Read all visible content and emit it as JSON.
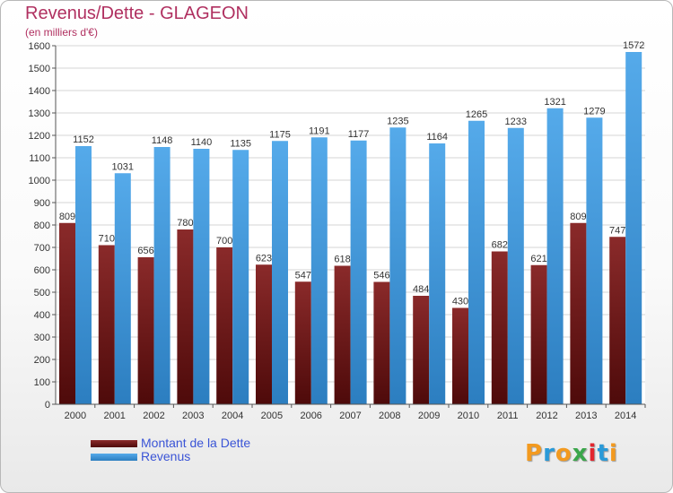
{
  "chart_data": {
    "type": "bar",
    "title": "Revenus/Dette - GLAGEON",
    "subtitle": "(en milliers d'€)",
    "categories": [
      "2000",
      "2001",
      "2002",
      "2003",
      "2004",
      "2005",
      "2006",
      "2007",
      "2008",
      "2009",
      "2010",
      "2011",
      "2012",
      "2013",
      "2014"
    ],
    "series": [
      {
        "name": "Montant de la Dette",
        "color": "#7a1c1c",
        "values": [
          809,
          710,
          656,
          780,
          700,
          623,
          547,
          618,
          546,
          484,
          430,
          682,
          621,
          809,
          747
        ]
      },
      {
        "name": "Revenus",
        "color": "#4ea2e6",
        "values": [
          1152,
          1031,
          1148,
          1140,
          1135,
          1175,
          1191,
          1177,
          1235,
          1164,
          1265,
          1233,
          1321,
          1279,
          1572
        ]
      }
    ],
    "xlabel": "",
    "ylabel": "",
    "ylim": [
      0,
      1600
    ],
    "ytick_step": 100,
    "grid": true,
    "legend": "bottom-left"
  },
  "logo": {
    "text": "Proxiti",
    "colors": [
      "#f39a1f",
      "#2a9ad8",
      "#f39a1f",
      "#3aa64a",
      "#e2262f",
      "#2a9ad8",
      "#f39a1f"
    ]
  }
}
